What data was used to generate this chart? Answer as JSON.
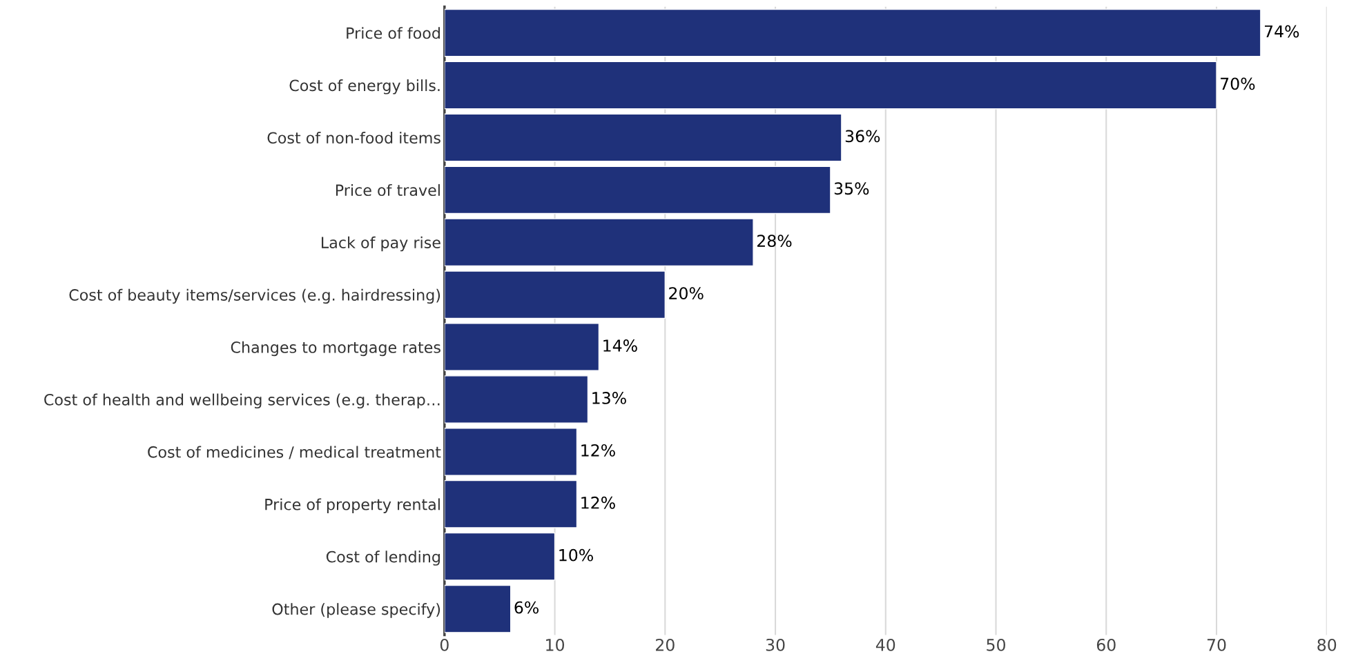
{
  "chart_data": {
    "type": "bar",
    "orientation": "horizontal",
    "categories": [
      "Price of food",
      "Cost of energy bills.",
      "Cost of non-food items",
      "Price of travel",
      "Lack of pay rise",
      "Cost of beauty items/services (e.g. hairdressing)",
      "Changes to mortgage rates",
      "Cost of health and wellbeing services (e.g. therap…",
      "Cost of medicines / medical treatment",
      "Price of property rental",
      "Cost of lending",
      "Other (please specify)"
    ],
    "values": [
      74,
      70,
      36,
      35,
      28,
      20,
      14,
      13,
      12,
      12,
      10,
      6
    ],
    "value_labels": [
      "74%",
      "70%",
      "36%",
      "35%",
      "28%",
      "20%",
      "14%",
      "13%",
      "12%",
      "12%",
      "10%",
      "6%"
    ],
    "color": "#1f317a",
    "xlim": [
      0,
      80
    ],
    "xticks": [
      0,
      10,
      20,
      30,
      40,
      50,
      60,
      70,
      80
    ],
    "grid": "x",
    "legend": false
  }
}
